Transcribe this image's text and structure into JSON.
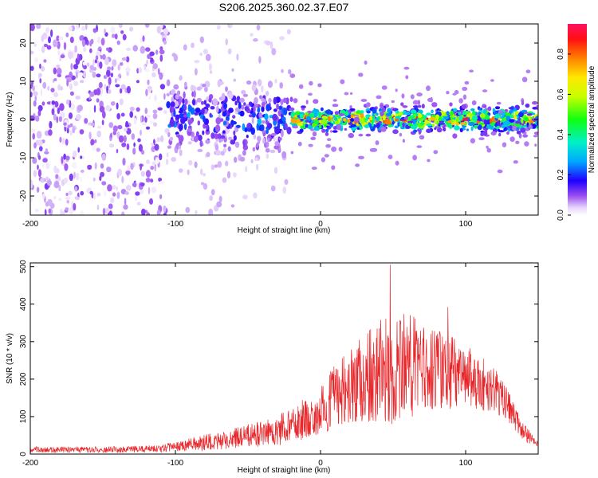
{
  "title": "S206.2025.360.02.37.E07",
  "colors": {
    "snr_line": "#e8262a",
    "axis": "#000000",
    "background": "#ffffff"
  },
  "chart_data": [
    {
      "type": "heatmap",
      "id": "spectrogram",
      "xlabel": "Height of straight line (km)",
      "ylabel": "Frequency (Hz)",
      "xlim": [
        -200,
        150
      ],
      "ylim": [
        -25,
        25
      ],
      "xticks": [
        -200,
        -100,
        0,
        100
      ],
      "yticks": [
        -20,
        -10,
        0,
        10,
        20
      ],
      "colorbar": {
        "label": "Normalized spectral amplitude",
        "range": [
          0.0,
          0.95
        ],
        "ticks": [
          "0.0",
          "0.2",
          "0.4",
          "0.6",
          "0.8"
        ],
        "tick_values": [
          0.0,
          0.2,
          0.4,
          0.6,
          0.8
        ],
        "colormap": "rainbow"
      },
      "signal_band": {
        "center_freq_hz": 0,
        "band_regions": [
          {
            "x_from": -200,
            "x_to": -105,
            "freq_spread_hz": 25,
            "typical_amplitude": 0.05
          },
          {
            "x_from": -105,
            "x_to": -20,
            "freq_spread_hz": 7,
            "typical_amplitude": 0.15
          },
          {
            "x_from": -20,
            "x_to": 150,
            "freq_spread_hz": 2.5,
            "typical_amplitude": 0.5
          }
        ]
      }
    },
    {
      "type": "line",
      "id": "snr",
      "xlabel": "Height of straight line (km)",
      "ylabel": "SNR (10 * v/v)",
      "xlim": [
        -200,
        150
      ],
      "ylim": [
        0,
        510
      ],
      "xticks": [
        -200,
        -100,
        0,
        100
      ],
      "yticks": [
        0,
        100,
        200,
        300,
        400,
        500
      ],
      "envelope": {
        "x": [
          -200,
          -150,
          -110,
          -100,
          -80,
          -60,
          -40,
          -20,
          0,
          20,
          40,
          50,
          60,
          80,
          100,
          120,
          130,
          140,
          150
        ],
        "mean": [
          12,
          12,
          14,
          20,
          30,
          42,
          55,
          70,
          120,
          185,
          225,
          240,
          235,
          230,
          210,
          170,
          120,
          60,
          20
        ],
        "spread": [
          8,
          8,
          10,
          14,
          22,
          28,
          35,
          50,
          70,
          100,
          140,
          160,
          140,
          110,
          90,
          60,
          45,
          25,
          10
        ]
      },
      "peak": {
        "x": 48,
        "y": 505
      }
    }
  ]
}
